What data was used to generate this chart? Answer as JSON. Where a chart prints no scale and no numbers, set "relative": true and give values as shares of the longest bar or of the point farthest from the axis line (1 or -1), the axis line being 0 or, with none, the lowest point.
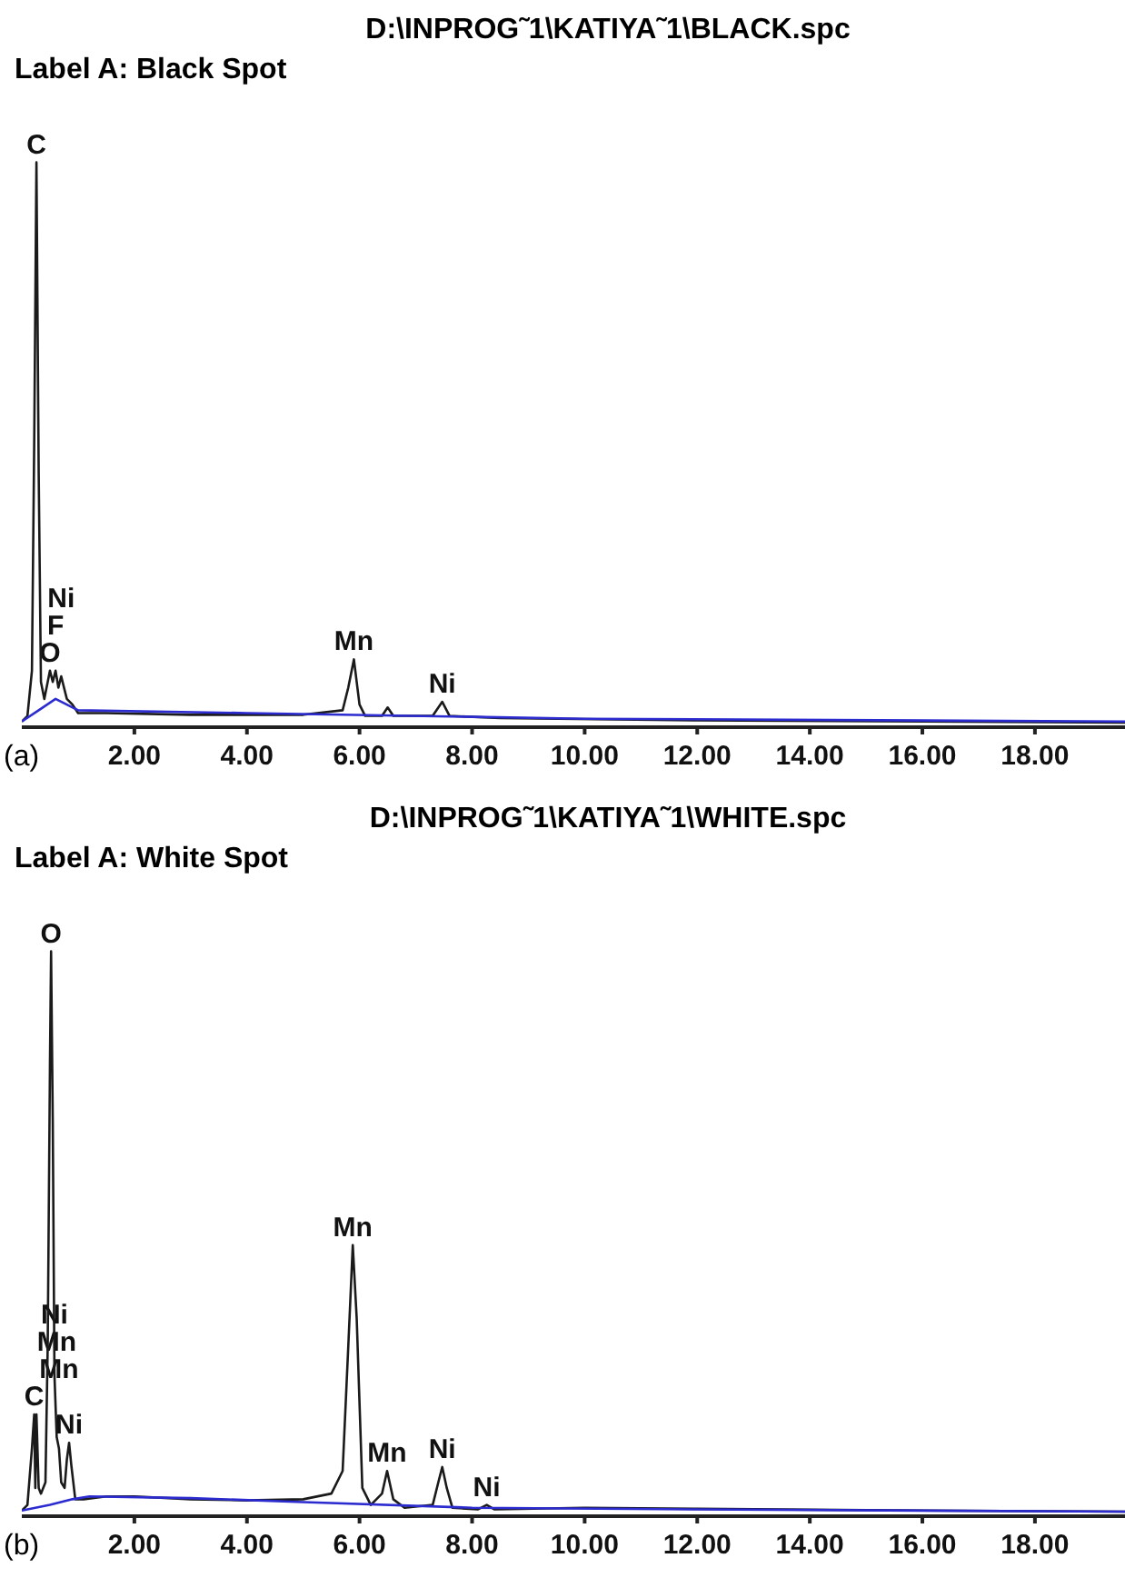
{
  "chart_data": [
    {
      "type": "line",
      "title": "D:\\INPROG˜1\\KATIYA˜1\\BLACK.spc",
      "subtitle": "Label A: Black Spot",
      "relative": true,
      "xlim": [
        0,
        19.6
      ],
      "xticks": [
        {
          "value": 2,
          "label": "2.00"
        },
        {
          "value": 4,
          "label": "4.00"
        },
        {
          "value": 6,
          "label": "6.00"
        },
        {
          "value": 8,
          "label": "8.00"
        },
        {
          "value": 10,
          "label": "10.00"
        },
        {
          "value": 12,
          "label": "12.00"
        },
        {
          "value": 14,
          "label": "14.00"
        },
        {
          "value": 16,
          "label": "16.00"
        },
        {
          "value": 18,
          "label": "18.00"
        }
      ],
      "marker": "none",
      "series": [
        {
          "color": "#1a1a1a",
          "x": [
            0,
            0.1,
            0.18,
            0.22,
            0.26,
            0.3,
            0.34,
            0.4,
            0.5,
            0.55,
            0.6,
            0.65,
            0.7,
            0.8,
            0.9,
            1.0,
            1.5,
            3,
            5,
            5.7,
            5.8,
            5.9,
            6.0,
            6.1,
            6.4,
            6.5,
            6.6,
            7.3,
            7.47,
            7.6,
            8.5,
            12,
            16,
            19.6
          ],
          "values": [
            0.01,
            0.02,
            0.1,
            0.5,
            1,
            0.45,
            0.08,
            0.05,
            0.1,
            0.08,
            0.1,
            0.07,
            0.09,
            0.05,
            0.04,
            0.025,
            0.025,
            0.022,
            0.022,
            0.03,
            0.07,
            0.12,
            0.04,
            0.02,
            0.02,
            0.035,
            0.02,
            0.02,
            0.045,
            0.02,
            0.016,
            0.012,
            0.01,
            0.008
          ]
        },
        {
          "color": "#2b2bd0",
          "x": [
            0,
            0.3,
            0.6,
            1,
            4,
            10,
            19.6
          ],
          "values": [
            0.01,
            0.03,
            0.05,
            0.03,
            0.025,
            0.015,
            0.01
          ]
        }
      ],
      "annotations": [
        {
          "text": "C",
          "x": 0.26,
          "y": 1
        },
        {
          "text": "O",
          "x": 0.5,
          "y": 0.1
        },
        {
          "text": "F",
          "x": 0.6,
          "y": 0.1
        },
        {
          "text": "Ni",
          "x": 0.7,
          "y": 0.09
        },
        {
          "text": "Mn",
          "x": 5.9,
          "y": 0.12
        },
        {
          "text": "Ni",
          "x": 7.47,
          "y": 0.045
        },
        "(a)"
      ]
    },
    {
      "type": "line",
      "title": "D:\\INPROG˜1\\KATIYA˜1\\WHITE.spc",
      "subtitle": "Label A: White Spot",
      "relative": true,
      "xlim": [
        0,
        19.6
      ],
      "xticks": [
        {
          "value": 2,
          "label": "2.00"
        },
        {
          "value": 4,
          "label": "4.00"
        },
        {
          "value": 6,
          "label": "6.00"
        },
        {
          "value": 8,
          "label": "8.00"
        },
        {
          "value": 10,
          "label": "10.00"
        },
        {
          "value": 12,
          "label": "12.00"
        },
        {
          "value": 14,
          "label": "14.00"
        },
        {
          "value": 16,
          "label": "16.00"
        },
        {
          "value": 18,
          "label": "18.00"
        }
      ],
      "marker": "none",
      "series": [
        {
          "color": "#1a1a1a",
          "x": [
            0,
            0.1,
            0.18,
            0.22,
            0.24,
            0.26,
            0.3,
            0.34,
            0.42,
            0.46,
            0.5,
            0.52,
            0.55,
            0.58,
            0.62,
            0.66,
            0.7,
            0.76,
            0.8,
            0.84,
            0.88,
            0.95,
            1.1,
            1.5,
            2,
            3,
            4,
            5,
            5.5,
            5.7,
            5.8,
            5.88,
            5.95,
            6.05,
            6.2,
            6.4,
            6.49,
            6.6,
            6.8,
            7.3,
            7.4,
            7.47,
            7.55,
            7.65,
            8.1,
            8.26,
            8.4,
            10,
            12,
            16,
            19.6
          ],
          "values": [
            0.01,
            0.02,
            0.12,
            0.18,
            0.05,
            0.18,
            0.05,
            0.04,
            0.06,
            0.3,
            0.8,
            1,
            0.7,
            0.25,
            0.14,
            0.12,
            0.06,
            0.05,
            0.1,
            0.13,
            0.09,
            0.03,
            0.03,
            0.035,
            0.035,
            0.03,
            0.028,
            0.03,
            0.04,
            0.08,
            0.3,
            0.48,
            0.35,
            0.05,
            0.02,
            0.04,
            0.08,
            0.03,
            0.015,
            0.02,
            0.06,
            0.087,
            0.05,
            0.015,
            0.012,
            0.02,
            0.012,
            0.015,
            0.013,
            0.01,
            0.008
          ]
        },
        {
          "color": "#2b2bd0",
          "x": [
            0,
            0.5,
            0.9,
            1.2,
            3,
            5,
            8,
            12,
            19.6
          ],
          "values": [
            0.01,
            0.02,
            0.03,
            0.035,
            0.032,
            0.025,
            0.015,
            0.012,
            0.008
          ]
        }
      ],
      "annotations": [
        {
          "text": "O",
          "x": 0.52,
          "y": 1
        },
        {
          "text": "C",
          "x": 0.22,
          "y": 0.18
        },
        {
          "text": "Ni",
          "x": 0.84,
          "y": 0.13
        },
        {
          "text": "Mn",
          "x": 0.66,
          "y": 0.12
        },
        {
          "text": "Mn",
          "x": 0.62,
          "y": 0.14
        },
        {
          "text": "Ni",
          "x": 0.58,
          "y": 0.25
        },
        {
          "text": "Mn",
          "x": 5.88,
          "y": 0.48
        },
        {
          "text": "Mn",
          "x": 6.49,
          "y": 0.08
        },
        {
          "text": "Ni",
          "x": 7.47,
          "y": 0.087
        },
        {
          "text": "Ni",
          "x": 8.26,
          "y": 0.02
        },
        "(b)"
      ]
    }
  ]
}
